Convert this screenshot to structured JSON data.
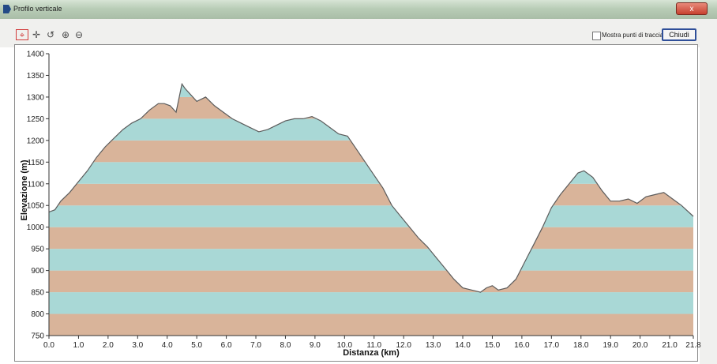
{
  "window": {
    "title": "Profilo verticale",
    "close_glyph": "x"
  },
  "toolbar": {
    "tools": [
      {
        "name": "select-target-icon",
        "glyph": "⌖"
      },
      {
        "name": "pan-crosshair-icon",
        "glyph": "✛"
      },
      {
        "name": "rotate-icon",
        "glyph": "↺"
      },
      {
        "name": "zoom-in-icon",
        "glyph": "⊕"
      },
      {
        "name": "zoom-out-icon",
        "glyph": "⊖"
      }
    ],
    "show_track_points_label": "Mostra punti di traccia",
    "close_label": "Chiudi"
  },
  "colors": {
    "band_a": "#d9b49a",
    "band_b": "#a9d8d6",
    "profile_line": "#5b5b5b"
  },
  "chart_data": {
    "type": "area",
    "xlabel": "Distanza  (km)",
    "ylabel": "Elevazione (m)",
    "xlim": [
      0,
      21.8
    ],
    "ylim": [
      750,
      1400
    ],
    "xticks": [
      "0.0",
      "1.0",
      "2.0",
      "3.0",
      "4.0",
      "5.0",
      "6.0",
      "7.0",
      "8.0",
      "9.0",
      "10.0",
      "11.0",
      "12.0",
      "13.0",
      "14.0",
      "15.0",
      "16.0",
      "17.0",
      "18.0",
      "19.0",
      "20.0",
      "21.0",
      "21.8"
    ],
    "xtick_values": [
      0,
      1,
      2,
      3,
      4,
      5,
      6,
      7,
      8,
      9,
      10,
      11,
      12,
      13,
      14,
      15,
      16,
      17,
      18,
      19,
      20,
      21,
      21.8
    ],
    "yticks": [
      "750",
      "800",
      "850",
      "900",
      "950",
      "1000",
      "1050",
      "1100",
      "1150",
      "1200",
      "1250",
      "1300",
      "1350",
      "1400"
    ],
    "ytick_values": [
      750,
      800,
      850,
      900,
      950,
      1000,
      1050,
      1100,
      1150,
      1200,
      1250,
      1300,
      1350,
      1400
    ],
    "band_height": 50,
    "series": [
      {
        "x": [
          0,
          0.2,
          0.4,
          0.7,
          1.0,
          1.3,
          1.6,
          1.9,
          2.2,
          2.5,
          2.8,
          3.1,
          3.4,
          3.7,
          3.9,
          4.1,
          4.3,
          4.5,
          4.6,
          4.8,
          5.0,
          5.3,
          5.6,
          5.9,
          6.2,
          6.5,
          6.8,
          7.1,
          7.4,
          7.7,
          8.0,
          8.3,
          8.6,
          8.9,
          9.2,
          9.5,
          9.8,
          10.1,
          10.4,
          10.7,
          11.0,
          11.3,
          11.6,
          11.9,
          12.2,
          12.5,
          12.8,
          13.1,
          13.4,
          13.7,
          14.0,
          14.3,
          14.6,
          14.8,
          15.0,
          15.2,
          15.5,
          15.8,
          16.1,
          16.4,
          16.7,
          17.0,
          17.3,
          17.6,
          17.9,
          18.1,
          18.4,
          18.7,
          19.0,
          19.3,
          19.6,
          19.9,
          20.2,
          20.5,
          20.8,
          21.1,
          21.4,
          21.8
        ],
        "y": [
          1035,
          1040,
          1060,
          1080,
          1105,
          1130,
          1160,
          1185,
          1205,
          1225,
          1240,
          1250,
          1270,
          1285,
          1285,
          1280,
          1265,
          1330,
          1320,
          1305,
          1290,
          1300,
          1280,
          1265,
          1250,
          1240,
          1230,
          1220,
          1225,
          1235,
          1245,
          1250,
          1250,
          1255,
          1245,
          1230,
          1215,
          1210,
          1180,
          1150,
          1120,
          1090,
          1050,
          1025,
          1000,
          975,
          955,
          930,
          905,
          880,
          860,
          855,
          850,
          860,
          865,
          855,
          860,
          880,
          920,
          960,
          1000,
          1045,
          1075,
          1100,
          1125,
          1130,
          1115,
          1085,
          1060,
          1060,
          1065,
          1055,
          1070,
          1075,
          1080,
          1065,
          1050,
          1025
        ]
      }
    ]
  }
}
